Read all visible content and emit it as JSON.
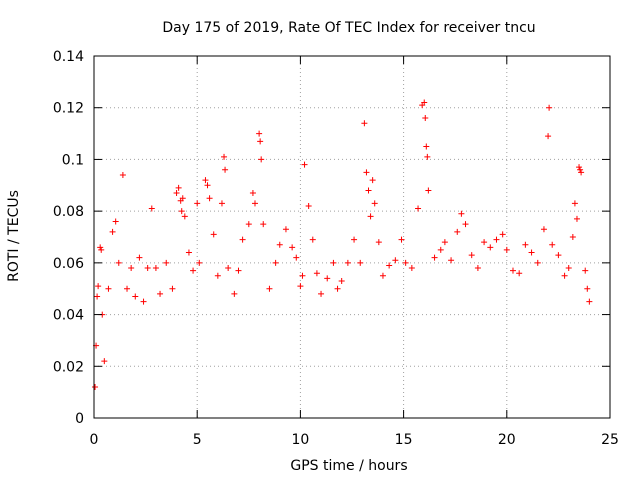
{
  "chart_data": {
    "type": "scatter",
    "title": "Day 175 of 2019, Rate Of TEC Index for receiver tncu",
    "xlabel": "GPS time / hours",
    "ylabel": "ROTI / TECUs",
    "xlim": [
      0,
      25
    ],
    "ylim": [
      0,
      0.14
    ],
    "xticks": [
      0,
      5,
      10,
      15,
      20,
      25
    ],
    "yticks": [
      0,
      0.02,
      0.04,
      0.06,
      0.08,
      0.1,
      0.12,
      0.14
    ],
    "xtick_labels": [
      "0",
      "5",
      "10",
      "15",
      "20",
      "25"
    ],
    "ytick_labels": [
      "0",
      "0.02",
      "0.04",
      "0.06",
      "0.08",
      "0.1",
      "0.12",
      "0.14"
    ],
    "grid": true,
    "marker": "+",
    "color": "#ff0000",
    "series": [
      {
        "name": "ROTI",
        "points": [
          [
            0.05,
            0.012
          ],
          [
            0.1,
            0.028
          ],
          [
            0.15,
            0.047
          ],
          [
            0.2,
            0.051
          ],
          [
            0.3,
            0.066
          ],
          [
            0.35,
            0.065
          ],
          [
            0.4,
            0.04
          ],
          [
            0.5,
            0.022
          ],
          [
            0.7,
            0.05
          ],
          [
            0.9,
            0.072
          ],
          [
            1.05,
            0.076
          ],
          [
            1.2,
            0.06
          ],
          [
            1.4,
            0.094
          ],
          [
            1.6,
            0.05
          ],
          [
            1.8,
            0.058
          ],
          [
            2.0,
            0.047
          ],
          [
            2.2,
            0.062
          ],
          [
            2.4,
            0.045
          ],
          [
            2.6,
            0.058
          ],
          [
            2.8,
            0.081
          ],
          [
            3.0,
            0.058
          ],
          [
            3.2,
            0.048
          ],
          [
            3.5,
            0.06
          ],
          [
            3.8,
            0.05
          ],
          [
            4.0,
            0.087
          ],
          [
            4.1,
            0.089
          ],
          [
            4.2,
            0.084
          ],
          [
            4.25,
            0.08
          ],
          [
            4.3,
            0.085
          ],
          [
            4.4,
            0.078
          ],
          [
            4.6,
            0.064
          ],
          [
            4.8,
            0.057
          ],
          [
            5.0,
            0.083
          ],
          [
            5.1,
            0.06
          ],
          [
            5.4,
            0.092
          ],
          [
            5.5,
            0.09
          ],
          [
            5.6,
            0.085
          ],
          [
            5.8,
            0.071
          ],
          [
            6.0,
            0.055
          ],
          [
            6.2,
            0.083
          ],
          [
            6.3,
            0.101
          ],
          [
            6.35,
            0.096
          ],
          [
            6.5,
            0.058
          ],
          [
            6.8,
            0.048
          ],
          [
            7.0,
            0.057
          ],
          [
            7.2,
            0.069
          ],
          [
            7.5,
            0.075
          ],
          [
            7.7,
            0.087
          ],
          [
            7.8,
            0.083
          ],
          [
            8.0,
            0.11
          ],
          [
            8.05,
            0.107
          ],
          [
            8.1,
            0.1
          ],
          [
            8.2,
            0.075
          ],
          [
            8.5,
            0.05
          ],
          [
            8.8,
            0.06
          ],
          [
            9.0,
            0.067
          ],
          [
            9.3,
            0.073
          ],
          [
            9.6,
            0.066
          ],
          [
            9.8,
            0.062
          ],
          [
            10.0,
            0.051
          ],
          [
            10.1,
            0.055
          ],
          [
            10.2,
            0.098
          ],
          [
            10.4,
            0.082
          ],
          [
            10.6,
            0.069
          ],
          [
            10.8,
            0.056
          ],
          [
            11.0,
            0.048
          ],
          [
            11.3,
            0.054
          ],
          [
            11.6,
            0.06
          ],
          [
            11.8,
            0.05
          ],
          [
            12.0,
            0.053
          ],
          [
            12.3,
            0.06
          ],
          [
            12.6,
            0.069
          ],
          [
            12.9,
            0.06
          ],
          [
            13.1,
            0.114
          ],
          [
            13.2,
            0.095
          ],
          [
            13.3,
            0.088
          ],
          [
            13.4,
            0.078
          ],
          [
            13.5,
            0.092
          ],
          [
            13.6,
            0.083
          ],
          [
            13.8,
            0.068
          ],
          [
            14.0,
            0.055
          ],
          [
            14.3,
            0.059
          ],
          [
            14.6,
            0.061
          ],
          [
            14.9,
            0.069
          ],
          [
            15.1,
            0.06
          ],
          [
            15.4,
            0.058
          ],
          [
            15.7,
            0.081
          ],
          [
            15.9,
            0.121
          ],
          [
            16.0,
            0.122
          ],
          [
            16.05,
            0.116
          ],
          [
            16.1,
            0.105
          ],
          [
            16.15,
            0.101
          ],
          [
            16.2,
            0.088
          ],
          [
            16.5,
            0.062
          ],
          [
            16.8,
            0.065
          ],
          [
            17.0,
            0.068
          ],
          [
            17.3,
            0.061
          ],
          [
            17.6,
            0.072
          ],
          [
            17.8,
            0.079
          ],
          [
            18.0,
            0.075
          ],
          [
            18.3,
            0.063
          ],
          [
            18.6,
            0.058
          ],
          [
            18.9,
            0.068
          ],
          [
            19.2,
            0.066
          ],
          [
            19.5,
            0.069
          ],
          [
            19.8,
            0.071
          ],
          [
            20.0,
            0.065
          ],
          [
            20.3,
            0.057
          ],
          [
            20.6,
            0.056
          ],
          [
            20.9,
            0.067
          ],
          [
            21.2,
            0.064
          ],
          [
            21.5,
            0.06
          ],
          [
            21.8,
            0.073
          ],
          [
            22.0,
            0.109
          ],
          [
            22.05,
            0.12
          ],
          [
            22.2,
            0.067
          ],
          [
            22.5,
            0.063
          ],
          [
            22.8,
            0.055
          ],
          [
            23.0,
            0.058
          ],
          [
            23.2,
            0.07
          ],
          [
            23.3,
            0.083
          ],
          [
            23.4,
            0.077
          ],
          [
            23.5,
            0.097
          ],
          [
            23.55,
            0.096
          ],
          [
            23.6,
            0.095
          ],
          [
            23.8,
            0.057
          ],
          [
            23.9,
            0.05
          ],
          [
            24.0,
            0.045
          ]
        ]
      }
    ]
  }
}
